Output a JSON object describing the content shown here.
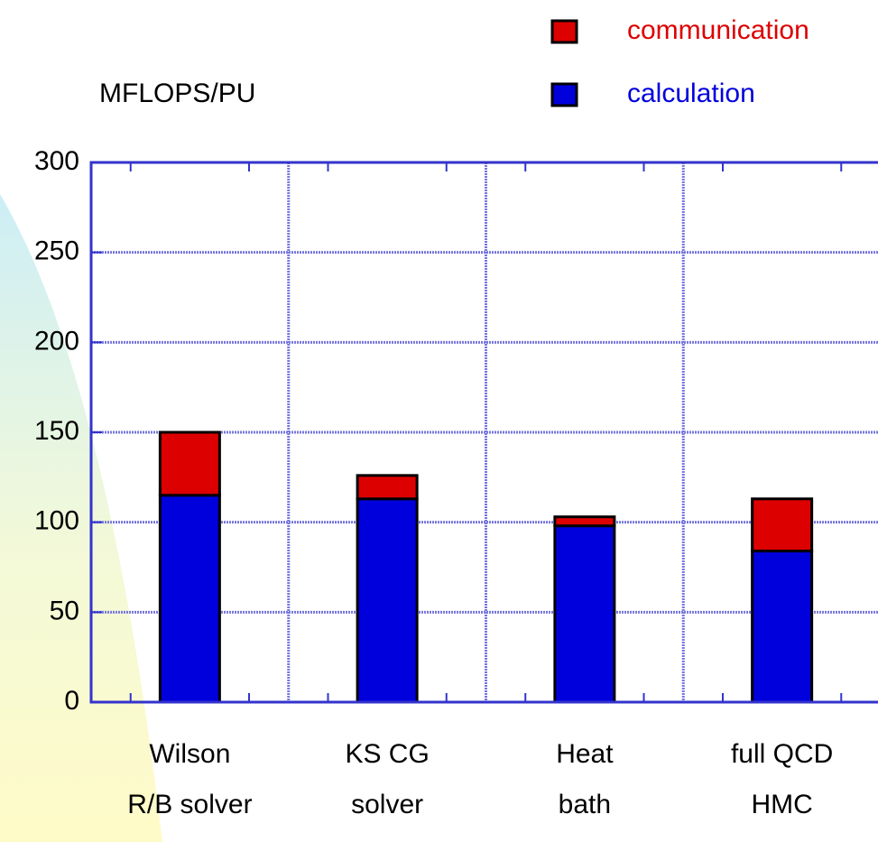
{
  "chart_data": {
    "type": "stacked_bar",
    "y_label": "MFLOPS/PU",
    "categories": [
      [
        "Wilson",
        "R/B solver"
      ],
      [
        "KS CG",
        "solver"
      ],
      [
        "Heat",
        "bath"
      ],
      [
        "full QCD",
        "HMC"
      ]
    ],
    "series": [
      {
        "name": "calculation",
        "color": "#0000dd",
        "values": [
          115,
          113,
          98,
          84
        ]
      },
      {
        "name": "communication",
        "color": "#dd0000",
        "values": [
          35,
          13,
          5,
          29
        ]
      }
    ],
    "ylim": [
      0,
      300
    ],
    "yticks": [
      0,
      50,
      100,
      150,
      200,
      250,
      300
    ],
    "grid": true
  }
}
